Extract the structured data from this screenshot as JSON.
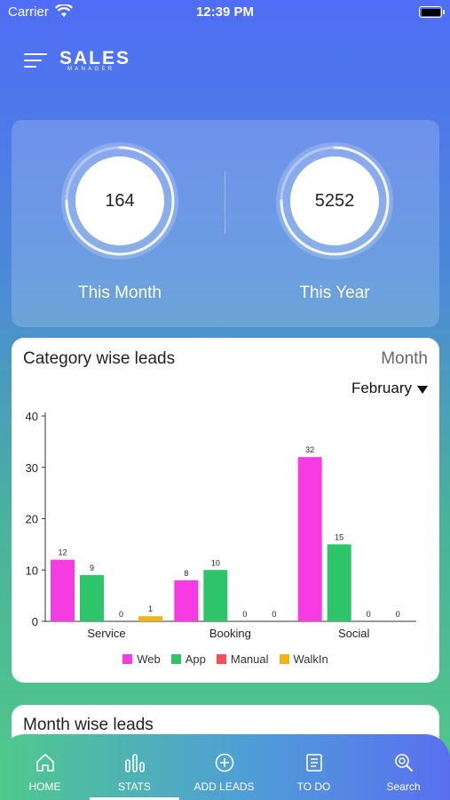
{
  "status_bar": {
    "carrier": "Carrier",
    "time": "12:39 PM"
  },
  "app": {
    "logo_main": "SALES",
    "logo_sub": "MANAGER"
  },
  "summary": {
    "month": {
      "value": "164",
      "label": "This Month",
      "progress": 0.75
    },
    "year": {
      "value": "5252",
      "label": "This Year",
      "progress": 0.75
    }
  },
  "category_card": {
    "title": "Category wise leads",
    "period": "Month",
    "month_selected": "February"
  },
  "chart_data": {
    "type": "bar",
    "categories": [
      "Service",
      "Booking",
      "Social"
    ],
    "series": [
      {
        "name": "Web",
        "color": "#f53ce2",
        "values": [
          12,
          8,
          32
        ]
      },
      {
        "name": "App",
        "color": "#2ec46a",
        "values": [
          9,
          10,
          15
        ]
      },
      {
        "name": "Manual",
        "color": "#f4505a",
        "values": [
          0,
          0,
          0
        ]
      },
      {
        "name": "WalkIn",
        "color": "#f0b418",
        "values": [
          1,
          0,
          0
        ]
      }
    ],
    "ylim": [
      0,
      40
    ],
    "yticks": [
      0,
      10,
      20,
      30,
      40
    ],
    "legend_position": "bottom"
  },
  "month_card": {
    "title": "Month wise leads"
  },
  "tabs": [
    {
      "label": "HOME",
      "icon": "home-icon"
    },
    {
      "label": "STATS",
      "icon": "stats-icon",
      "active": true
    },
    {
      "label": "ADD LEADS",
      "icon": "add-circle-icon"
    },
    {
      "label": "TO DO",
      "icon": "todo-list-icon"
    },
    {
      "label": "Search",
      "icon": "search-icon"
    }
  ]
}
